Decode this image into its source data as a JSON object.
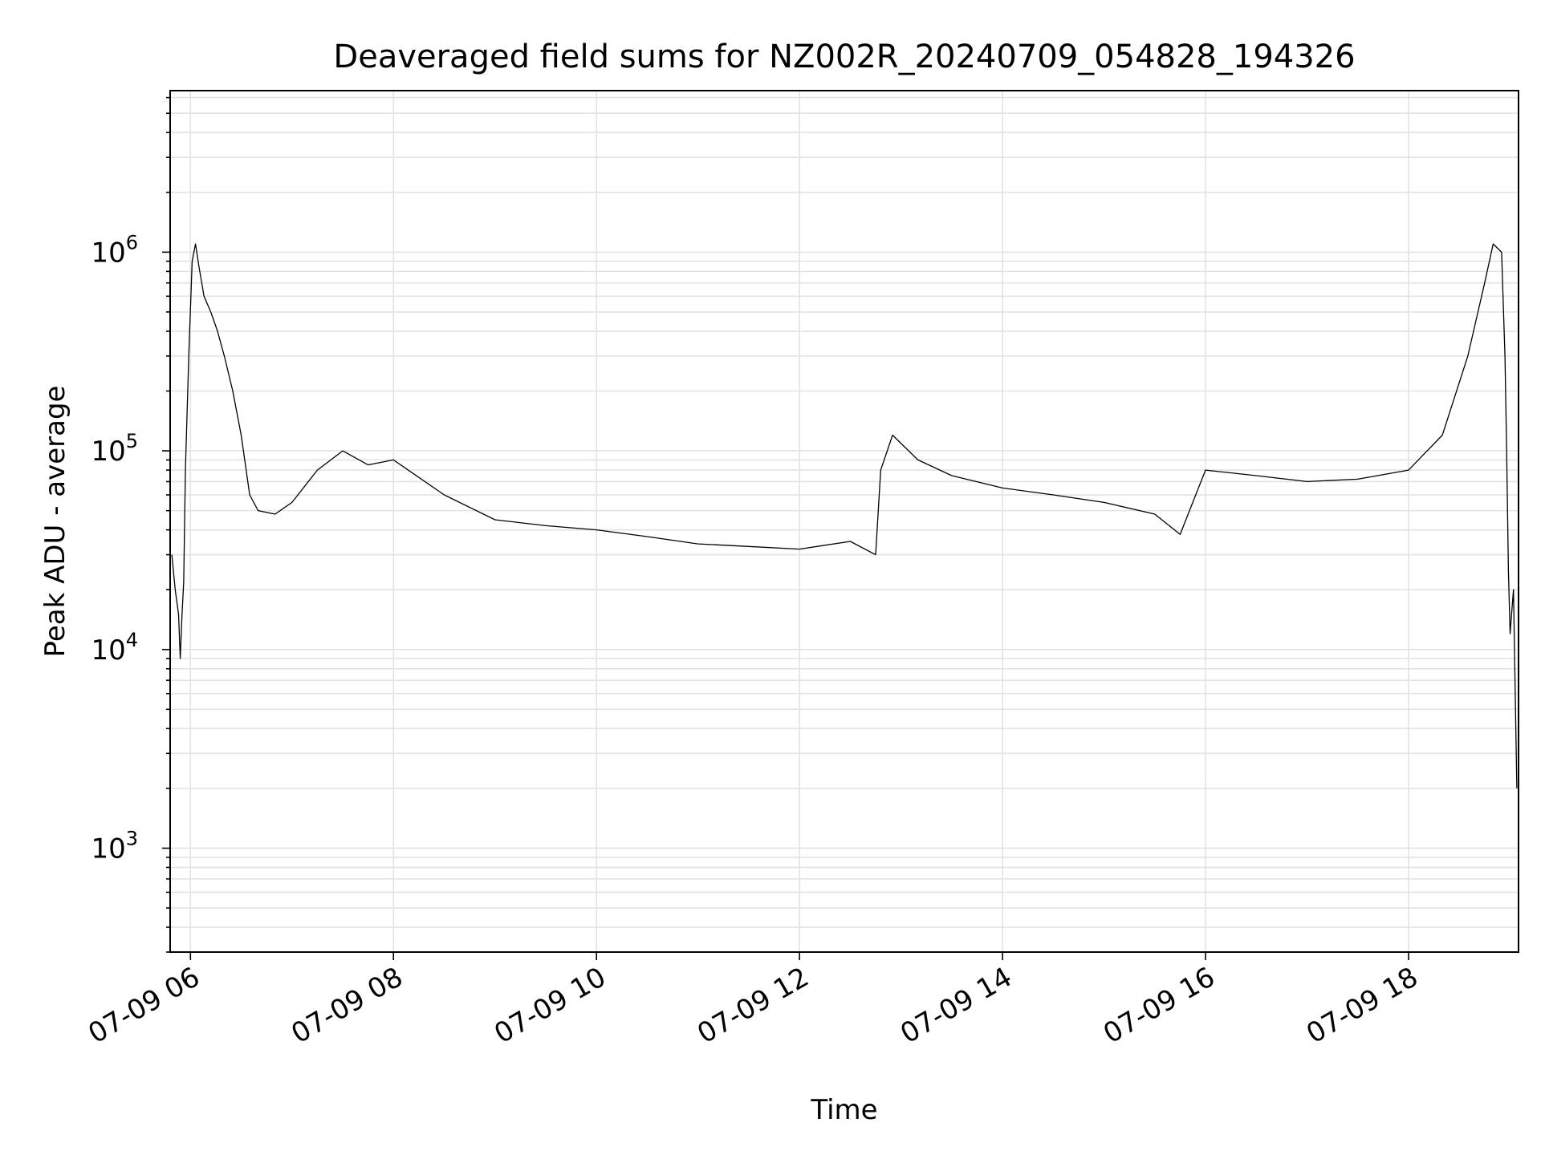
{
  "chart_data": {
    "type": "line",
    "title": "Deaveraged field sums for NZ002R_20240709_054828_194326",
    "xlabel": "Time",
    "ylabel": "Peak ADU - average",
    "yscale": "log",
    "ylim": [
      300,
      6500000
    ],
    "xlim": [
      "2024-07-09T05:48:00",
      "2024-07-09T19:05:00"
    ],
    "x_ticks": [
      "2024-07-09T06:00",
      "2024-07-09T08:00",
      "2024-07-09T10:00",
      "2024-07-09T12:00",
      "2024-07-09T14:00",
      "2024-07-09T16:00",
      "2024-07-09T18:00"
    ],
    "x_tick_labels": [
      "07-09 06",
      "07-09 08",
      "07-09 10",
      "07-09 12",
      "07-09 14",
      "07-09 16",
      "07-09 18"
    ],
    "y_ticks": [
      1000,
      10000,
      100000,
      1000000
    ],
    "y_tick_labels": [
      {
        "base": "10",
        "exp": "3"
      },
      {
        "base": "10",
        "exp": "4"
      },
      {
        "base": "10",
        "exp": "5"
      },
      {
        "base": "10",
        "exp": "6"
      }
    ],
    "grid": true,
    "color": "#000000",
    "series": [
      {
        "x": [
          "2024-07-09T05:49",
          "2024-07-09T05:51",
          "2024-07-09T05:53",
          "2024-07-09T05:54",
          "2024-07-09T05:55",
          "2024-07-09T05:56",
          "2024-07-09T05:57",
          "2024-07-09T05:59",
          "2024-07-09T06:01",
          "2024-07-09T06:03",
          "2024-07-09T06:05",
          "2024-07-09T06:08",
          "2024-07-09T06:12",
          "2024-07-09T06:16",
          "2024-07-09T06:20",
          "2024-07-09T06:25",
          "2024-07-09T06:30",
          "2024-07-09T06:35",
          "2024-07-09T06:40",
          "2024-07-09T06:50",
          "2024-07-09T07:00",
          "2024-07-09T07:15",
          "2024-07-09T07:30",
          "2024-07-09T07:45",
          "2024-07-09T08:00",
          "2024-07-09T08:30",
          "2024-07-09T09:00",
          "2024-07-09T09:30",
          "2024-07-09T10:00",
          "2024-07-09T10:30",
          "2024-07-09T11:00",
          "2024-07-09T11:30",
          "2024-07-09T12:00",
          "2024-07-09T12:30",
          "2024-07-09T12:45",
          "2024-07-09T12:48",
          "2024-07-09T12:55",
          "2024-07-09T13:10",
          "2024-07-09T13:30",
          "2024-07-09T14:00",
          "2024-07-09T14:30",
          "2024-07-09T15:00",
          "2024-07-09T15:30",
          "2024-07-09T15:45",
          "2024-07-09T16:00",
          "2024-07-09T16:30",
          "2024-07-09T17:00",
          "2024-07-09T17:30",
          "2024-07-09T18:00",
          "2024-07-09T18:20",
          "2024-07-09T18:35",
          "2024-07-09T18:45",
          "2024-07-09T18:50",
          "2024-07-09T18:55",
          "2024-07-09T18:57",
          "2024-07-09T18:58",
          "2024-07-09T18:59",
          "2024-07-09T19:00",
          "2024-07-09T19:02",
          "2024-07-09T19:04"
        ],
        "y": [
          30000,
          20000,
          15000,
          9000,
          15000,
          22000,
          80000,
          300000,
          900000,
          1100000,
          850000,
          600000,
          500000,
          400000,
          300000,
          200000,
          120000,
          60000,
          50000,
          48000,
          55000,
          80000,
          100000,
          85000,
          90000,
          60000,
          45000,
          42000,
          40000,
          37000,
          34000,
          33000,
          32000,
          35000,
          30000,
          80000,
          120000,
          90000,
          75000,
          65000,
          60000,
          55000,
          48000,
          38000,
          80000,
          75000,
          70000,
          72000,
          80000,
          120000,
          300000,
          700000,
          1100000,
          1000000,
          300000,
          100000,
          25000,
          12000,
          20000,
          2000
        ]
      }
    ]
  }
}
